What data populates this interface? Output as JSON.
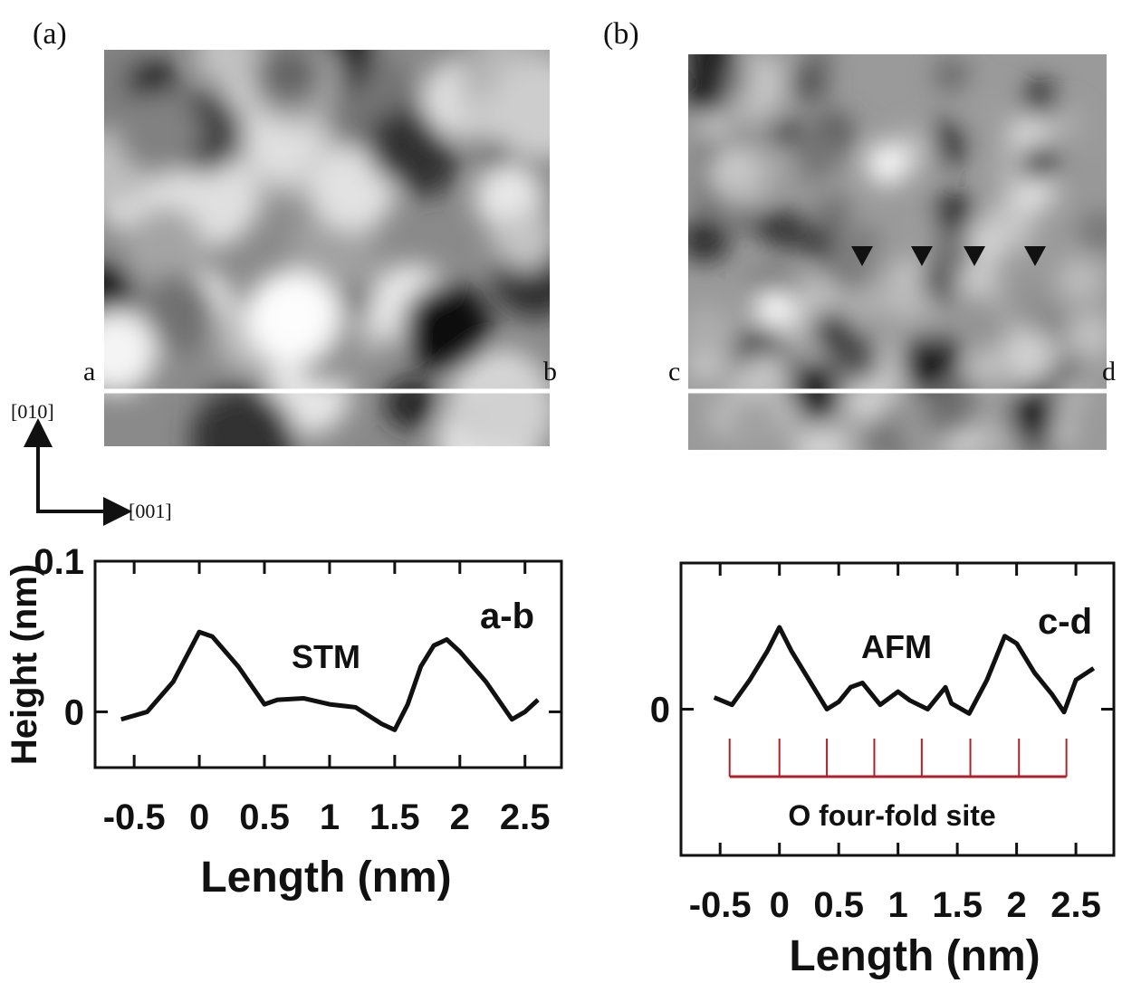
{
  "figure": {
    "panel_a": "(a)",
    "panel_b": "(b)",
    "line_a_start": "a",
    "line_a_end": "b",
    "line_b_start": "c",
    "line_b_end": "d",
    "dir_up": "[010]",
    "dir_right": "[001]"
  },
  "chart_data": [
    {
      "type": "line",
      "ylabel": "Height (nm)",
      "xlabel": "Length (nm)",
      "annotations": [
        "STM",
        "a-b"
      ],
      "xlim": [
        -0.8,
        2.78
      ],
      "ylim": [
        -0.037,
        0.1
      ],
      "xticks": [
        -0.5,
        0,
        0.5,
        1,
        1.5,
        2,
        2.5
      ],
      "yticks": [
        0,
        0.1
      ],
      "x": [
        -0.6,
        -0.4,
        -0.2,
        0,
        0.1,
        0.3,
        0.5,
        0.6,
        0.8,
        1.0,
        1.2,
        1.4,
        1.5,
        1.6,
        1.7,
        1.8,
        1.9,
        2.0,
        2.2,
        2.4,
        2.5,
        2.6
      ],
      "series": [
        {
          "color": "#111111",
          "values": [
            -0.005,
            0.0,
            0.02,
            0.053,
            0.05,
            0.03,
            0.005,
            0.008,
            0.009,
            0.005,
            0.003,
            -0.008,
            -0.012,
            0.005,
            0.03,
            0.044,
            0.048,
            0.04,
            0.02,
            -0.005,
            0.0,
            0.008
          ]
        }
      ]
    },
    {
      "type": "line",
      "xlabel": "Length (nm)",
      "annotations": [
        "AFM",
        "c-d",
        "O four-fold site"
      ],
      "xlim": [
        -0.83,
        2.82
      ],
      "ylim": [
        -0.1,
        0.1
      ],
      "xticks": [
        -0.5,
        0,
        0.5,
        1,
        1.5,
        2,
        2.5
      ],
      "yticks": [
        0
      ],
      "site_positions": [
        -0.42,
        0,
        0.4,
        0.8,
        1.2,
        1.61,
        2.02,
        2.42
      ],
      "site_color": "#b0202a",
      "x": [
        -0.55,
        -0.4,
        -0.25,
        -0.1,
        0,
        0.1,
        0.25,
        0.4,
        0.5,
        0.6,
        0.7,
        0.85,
        1.0,
        1.1,
        1.25,
        1.4,
        1.45,
        1.6,
        1.75,
        1.9,
        2.0,
        2.15,
        2.3,
        2.4,
        2.5,
        2.65
      ],
      "series": [
        {
          "color": "#111111",
          "values": [
            0.008,
            0.003,
            0.02,
            0.04,
            0.056,
            0.04,
            0.02,
            0.0,
            0.005,
            0.015,
            0.018,
            0.003,
            0.012,
            0.006,
            0.0,
            0.015,
            0.004,
            -0.003,
            0.02,
            0.05,
            0.045,
            0.025,
            0.01,
            -0.002,
            0.02,
            0.028
          ]
        }
      ]
    }
  ]
}
